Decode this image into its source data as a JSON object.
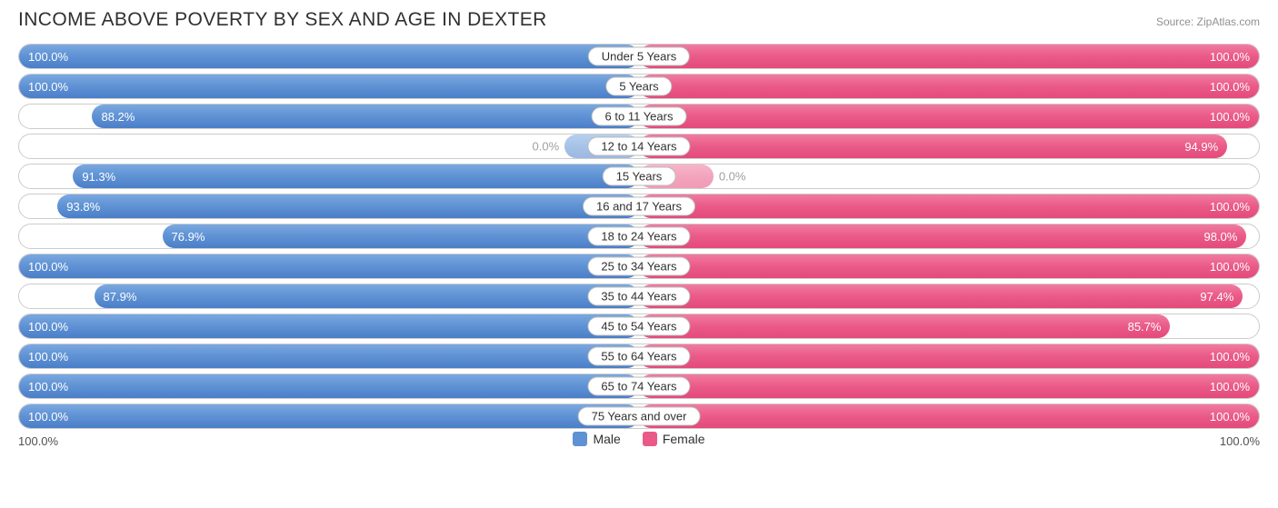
{
  "title": "INCOME ABOVE POVERTY BY SEX AND AGE IN DEXTER",
  "source": "Source: ZipAtlas.com",
  "colors": {
    "male": "#5f92d4",
    "female": "#ea5a88",
    "border": "#cccccc",
    "text": "#303030",
    "value_text": "#ffffff",
    "background": "#ffffff"
  },
  "legend": {
    "male": "Male",
    "female": "Female"
  },
  "axis": {
    "left": "100.0%",
    "right": "100.0%"
  },
  "inside_threshold": 20,
  "stub_width_pct": 12,
  "rows": [
    {
      "age": "Under 5 Years",
      "male": 100.0,
      "female": 100.0
    },
    {
      "age": "5 Years",
      "male": 100.0,
      "female": 100.0
    },
    {
      "age": "6 to 11 Years",
      "male": 88.2,
      "female": 100.0
    },
    {
      "age": "12 to 14 Years",
      "male": 0.0,
      "female": 94.9
    },
    {
      "age": "15 Years",
      "male": 91.3,
      "female": 0.0
    },
    {
      "age": "16 and 17 Years",
      "male": 93.8,
      "female": 100.0
    },
    {
      "age": "18 to 24 Years",
      "male": 76.9,
      "female": 98.0
    },
    {
      "age": "25 to 34 Years",
      "male": 100.0,
      "female": 100.0
    },
    {
      "age": "35 to 44 Years",
      "male": 87.9,
      "female": 97.4
    },
    {
      "age": "45 to 54 Years",
      "male": 100.0,
      "female": 85.7
    },
    {
      "age": "55 to 64 Years",
      "male": 100.0,
      "female": 100.0
    },
    {
      "age": "65 to 74 Years",
      "male": 100.0,
      "female": 100.0
    },
    {
      "age": "75 Years and over",
      "male": 100.0,
      "female": 100.0
    }
  ]
}
